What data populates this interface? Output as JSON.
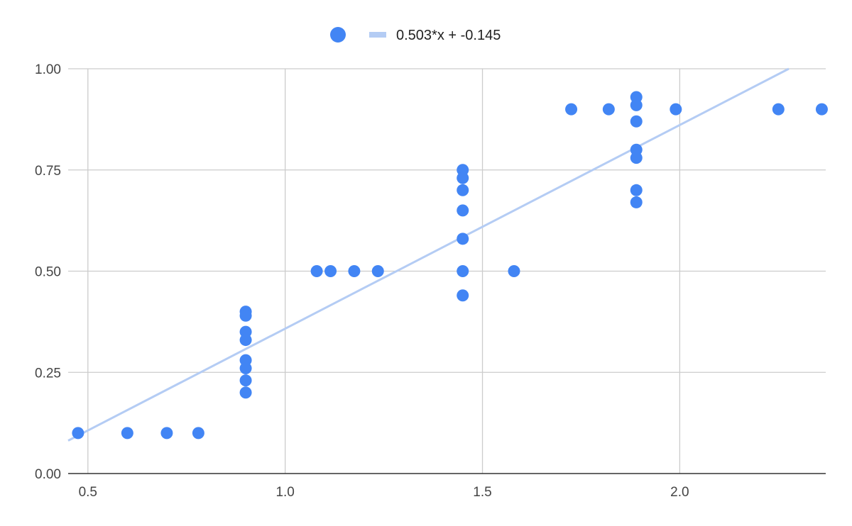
{
  "chart_data": {
    "type": "scatter",
    "title": "",
    "xlabel": "",
    "ylabel": "",
    "xlim": [
      0.45,
      2.37
    ],
    "ylim": [
      0,
      1
    ],
    "x_ticks": [
      "0.5",
      "1.0",
      "1.5",
      "2.0"
    ],
    "y_ticks": [
      "0.00",
      "0.25",
      "0.50",
      "0.75",
      "1.00"
    ],
    "grid": true,
    "legend_position": "top-center",
    "colors": {
      "points": "#4285f4",
      "trendline": "#b4ccf4",
      "grid": "#cccccc",
      "axis": "#333333"
    },
    "series": [
      {
        "points": [
          [
            0.475,
            0.1
          ],
          [
            0.6,
            0.1
          ],
          [
            0.7,
            0.1
          ],
          [
            0.78,
            0.1
          ],
          [
            0.9,
            0.4
          ],
          [
            0.9,
            0.39
          ],
          [
            0.9,
            0.35
          ],
          [
            0.9,
            0.33
          ],
          [
            0.9,
            0.28
          ],
          [
            0.9,
            0.26
          ],
          [
            0.9,
            0.23
          ],
          [
            0.9,
            0.2
          ],
          [
            1.08,
            0.5
          ],
          [
            1.115,
            0.5
          ],
          [
            1.175,
            0.5
          ],
          [
            1.235,
            0.5
          ],
          [
            1.45,
            0.75
          ],
          [
            1.45,
            0.73
          ],
          [
            1.45,
            0.7
          ],
          [
            1.45,
            0.65
          ],
          [
            1.45,
            0.58
          ],
          [
            1.45,
            0.5
          ],
          [
            1.45,
            0.44
          ],
          [
            1.58,
            0.5
          ],
          [
            1.725,
            0.9
          ],
          [
            1.82,
            0.9
          ],
          [
            1.89,
            0.93
          ],
          [
            1.89,
            0.91
          ],
          [
            1.89,
            0.87
          ],
          [
            1.89,
            0.8
          ],
          [
            1.89,
            0.78
          ],
          [
            1.89,
            0.7
          ],
          [
            1.89,
            0.67
          ],
          [
            1.99,
            0.9
          ],
          [
            2.25,
            0.9
          ],
          [
            2.36,
            0.9
          ]
        ]
      }
    ],
    "trendline": {
      "label": "0.503*x + -0.145",
      "slope": 0.503,
      "intercept": -0.145
    }
  }
}
